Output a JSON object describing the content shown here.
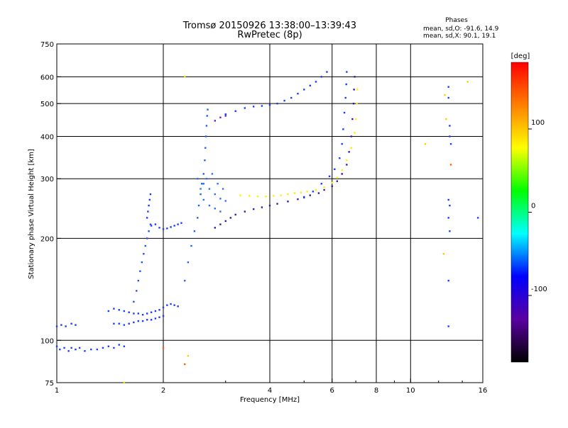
{
  "chart_data": {
    "type": "scatter",
    "title": "Tromsø 20150926 13:38:00–13:39:43",
    "subtitle": "RwPretec (8p)",
    "xlabel": "Frequency [MHz]",
    "ylabel": "Stationary phase Virtual Height [km]",
    "x_scale": "log",
    "y_scale": "log",
    "xlim": [
      1,
      16
    ],
    "ylim": [
      75,
      750
    ],
    "x_ticks": [
      1,
      2,
      4,
      6,
      8,
      10,
      16
    ],
    "y_ticks": [
      75,
      100,
      200,
      300,
      400,
      500,
      600,
      750
    ],
    "grid": true,
    "phase_stats": {
      "heading": "Phases",
      "line_o": "mean, sd,O: -91.6, 14.9",
      "line_x": "mean, sd,X:  90.1, 19.1"
    },
    "colorbar": {
      "label": "[deg]",
      "range": [
        -180,
        180
      ],
      "ticks": [
        100,
        0,
        -100
      ],
      "stops": [
        "#000000",
        "#5a00a0",
        "#0000ff",
        "#00ffff",
        "#00ff00",
        "#ffff00",
        "#ff8000",
        "#ff0000"
      ]
    },
    "traces": [
      {
        "name": "",
        "color": "#1a3cff",
        "points": [
          [
            1.0,
            96
          ],
          [
            1.02,
            94
          ],
          [
            1.05,
            95
          ],
          [
            1.08,
            93
          ],
          [
            1.1,
            95
          ],
          [
            1.13,
            94
          ],
          [
            1.16,
            95
          ],
          [
            1.2,
            93
          ],
          [
            1.25,
            94
          ],
          [
            1.3,
            94
          ],
          [
            1.35,
            95
          ],
          [
            1.4,
            96
          ],
          [
            1.45,
            95
          ],
          [
            1.5,
            97
          ],
          [
            1.55,
            96
          ]
        ]
      },
      {
        "name": "",
        "color": "#1a3cff",
        "points": [
          [
            1.0,
            110
          ],
          [
            1.03,
            111
          ],
          [
            1.06,
            110
          ],
          [
            1.1,
            112
          ],
          [
            1.13,
            111
          ]
        ]
      },
      {
        "name": "",
        "color": "#1a3cff",
        "points": [
          [
            1.4,
            122
          ],
          [
            1.45,
            124
          ],
          [
            1.5,
            123
          ],
          [
            1.55,
            122
          ],
          [
            1.6,
            121
          ],
          [
            1.65,
            120
          ],
          [
            1.7,
            120
          ],
          [
            1.75,
            119
          ],
          [
            1.8,
            120
          ],
          [
            1.85,
            121
          ],
          [
            1.9,
            122
          ],
          [
            1.95,
            123
          ],
          [
            2.0,
            125
          ],
          [
            2.05,
            127
          ],
          [
            2.1,
            128
          ],
          [
            2.15,
            127
          ],
          [
            2.2,
            126
          ]
        ]
      },
      {
        "name": "",
        "color": "#1a3cff",
        "points": [
          [
            1.45,
            112
          ],
          [
            1.5,
            112
          ],
          [
            1.55,
            111
          ],
          [
            1.6,
            112
          ],
          [
            1.65,
            113
          ],
          [
            1.7,
            114
          ],
          [
            1.75,
            114
          ],
          [
            1.8,
            115
          ],
          [
            1.85,
            115
          ],
          [
            1.9,
            116
          ],
          [
            1.95,
            117
          ],
          [
            2.0,
            118
          ]
        ]
      },
      {
        "name": "",
        "color": "#2050ff",
        "points": [
          [
            1.65,
            130
          ],
          [
            1.68,
            140
          ],
          [
            1.7,
            150
          ],
          [
            1.72,
            160
          ],
          [
            1.74,
            170
          ],
          [
            1.76,
            180
          ],
          [
            1.78,
            190
          ],
          [
            1.8,
            200
          ],
          [
            1.82,
            210
          ],
          [
            1.84,
            220
          ]
        ]
      },
      {
        "name": "",
        "color": "#1a3cff",
        "points": [
          [
            1.8,
            230
          ],
          [
            1.81,
            240
          ],
          [
            1.82,
            250
          ],
          [
            1.83,
            260
          ],
          [
            1.84,
            270
          ]
        ]
      },
      {
        "name": "",
        "color": "#1a3cff",
        "points": [
          [
            1.85,
            218
          ],
          [
            1.9,
            220
          ],
          [
            1.95,
            215
          ],
          [
            2.0,
            213
          ],
          [
            2.05,
            214
          ],
          [
            2.1,
            216
          ],
          [
            2.15,
            218
          ],
          [
            2.2,
            220
          ],
          [
            2.25,
            222
          ]
        ]
      },
      {
        "name": "",
        "color": "#2060ff",
        "points": [
          [
            2.3,
            150
          ],
          [
            2.35,
            170
          ],
          [
            2.4,
            190
          ],
          [
            2.45,
            210
          ],
          [
            2.5,
            230
          ],
          [
            2.52,
            250
          ],
          [
            2.55,
            270
          ],
          [
            2.57,
            290
          ],
          [
            2.6,
            310
          ],
          [
            2.62,
            340
          ],
          [
            2.63,
            370
          ],
          [
            2.64,
            400
          ],
          [
            2.65,
            430
          ],
          [
            2.66,
            460
          ],
          [
            2.67,
            480
          ]
        ]
      },
      {
        "name": "",
        "color": "#2a70ff",
        "points": [
          [
            2.5,
            300
          ],
          [
            2.6,
            290
          ],
          [
            2.7,
            280
          ],
          [
            2.8,
            270
          ],
          [
            2.9,
            262
          ],
          [
            3.0,
            258
          ],
          [
            2.6,
            260
          ],
          [
            2.7,
            250
          ],
          [
            2.8,
            245
          ],
          [
            2.9,
            240
          ],
          [
            2.55,
            280
          ],
          [
            2.65,
            300
          ],
          [
            2.75,
            310
          ],
          [
            2.85,
            290
          ],
          [
            2.95,
            280
          ]
        ]
      },
      {
        "name": "",
        "color": "#3a1aa0",
        "points": [
          [
            2.8,
            215
          ],
          [
            2.9,
            220
          ],
          [
            3.0,
            225
          ],
          [
            3.1,
            230
          ],
          [
            3.2,
            235
          ],
          [
            3.4,
            240
          ],
          [
            3.6,
            244
          ],
          [
            3.8,
            247
          ],
          [
            4.0,
            250
          ],
          [
            4.2,
            253
          ],
          [
            4.5,
            257
          ],
          [
            4.8,
            261
          ],
          [
            5.0,
            264
          ],
          [
            5.2,
            268
          ],
          [
            5.5,
            272
          ],
          [
            5.7,
            278
          ],
          [
            6.0,
            285
          ],
          [
            6.2,
            295
          ],
          [
            6.4,
            310
          ],
          [
            6.6,
            330
          ],
          [
            6.7,
            360
          ],
          [
            6.8,
            400
          ],
          [
            6.85,
            450
          ],
          [
            6.9,
            500
          ],
          [
            6.92,
            550
          ],
          [
            6.95,
            600
          ]
        ]
      },
      {
        "name": "",
        "color": "#1a3cff",
        "points": [
          [
            5.0,
            265
          ],
          [
            5.3,
            275
          ],
          [
            5.6,
            290
          ],
          [
            5.9,
            305
          ],
          [
            6.1,
            320
          ],
          [
            6.3,
            345
          ],
          [
            6.4,
            380
          ],
          [
            6.45,
            420
          ],
          [
            6.5,
            470
          ],
          [
            6.55,
            520
          ],
          [
            6.58,
            570
          ],
          [
            6.6,
            620
          ]
        ]
      },
      {
        "name": "",
        "color": "#ffee00",
        "points": [
          [
            3.3,
            268
          ],
          [
            3.5,
            267
          ],
          [
            3.7,
            266
          ],
          [
            3.9,
            266
          ],
          [
            4.1,
            267
          ],
          [
            4.3,
            268
          ],
          [
            4.5,
            270
          ],
          [
            4.7,
            272
          ],
          [
            4.9,
            273
          ],
          [
            5.1,
            275
          ],
          [
            5.4,
            278
          ],
          [
            5.7,
            283
          ],
          [
            6.0,
            292
          ],
          [
            6.2,
            302
          ],
          [
            6.4,
            318
          ],
          [
            6.6,
            340
          ],
          [
            6.8,
            370
          ],
          [
            6.95,
            410
          ],
          [
            7.0,
            450
          ],
          [
            7.05,
            500
          ],
          [
            7.07,
            550
          ]
        ]
      },
      {
        "name": "",
        "color": "#1a3cff",
        "points": [
          [
            3.0,
            465
          ],
          [
            3.2,
            475
          ],
          [
            3.4,
            485
          ],
          [
            3.6,
            490
          ],
          [
            3.8,
            492
          ],
          [
            4.0,
            495
          ],
          [
            4.2,
            500
          ],
          [
            4.4,
            510
          ],
          [
            4.6,
            520
          ],
          [
            4.8,
            535
          ],
          [
            5.0,
            550
          ],
          [
            5.2,
            565
          ],
          [
            5.4,
            580
          ],
          [
            5.6,
            600
          ],
          [
            5.8,
            620
          ]
        ]
      },
      {
        "name": "",
        "color": "#6a20d0",
        "points": [
          [
            2.8,
            445
          ],
          [
            2.9,
            455
          ],
          [
            3.0,
            460
          ]
        ]
      },
      {
        "name": "",
        "color": "#1a3cff",
        "points": [
          [
            12.8,
            560
          ],
          [
            12.8,
            520
          ],
          [
            12.9,
            430
          ],
          [
            12.9,
            400
          ],
          [
            13.0,
            380
          ],
          [
            12.8,
            260
          ],
          [
            12.9,
            250
          ],
          [
            12.8,
            230
          ],
          [
            12.9,
            210
          ],
          [
            12.8,
            150
          ],
          [
            12.8,
            110
          ],
          [
            15.5,
            230
          ]
        ]
      },
      {
        "name": "",
        "color": "#ffcc00",
        "points": [
          [
            12.5,
            530
          ],
          [
            12.6,
            450
          ],
          [
            12.4,
            180
          ],
          [
            11.0,
            380
          ],
          [
            14.5,
            580
          ],
          [
            2.3,
            600
          ],
          [
            2.35,
            90
          ],
          [
            1.55,
            75
          ]
        ]
      },
      {
        "name": "",
        "color": "#ff6000",
        "points": [
          [
            13.0,
            330
          ],
          [
            2.3,
            85
          ],
          [
            2.0,
            95
          ]
        ]
      }
    ]
  }
}
